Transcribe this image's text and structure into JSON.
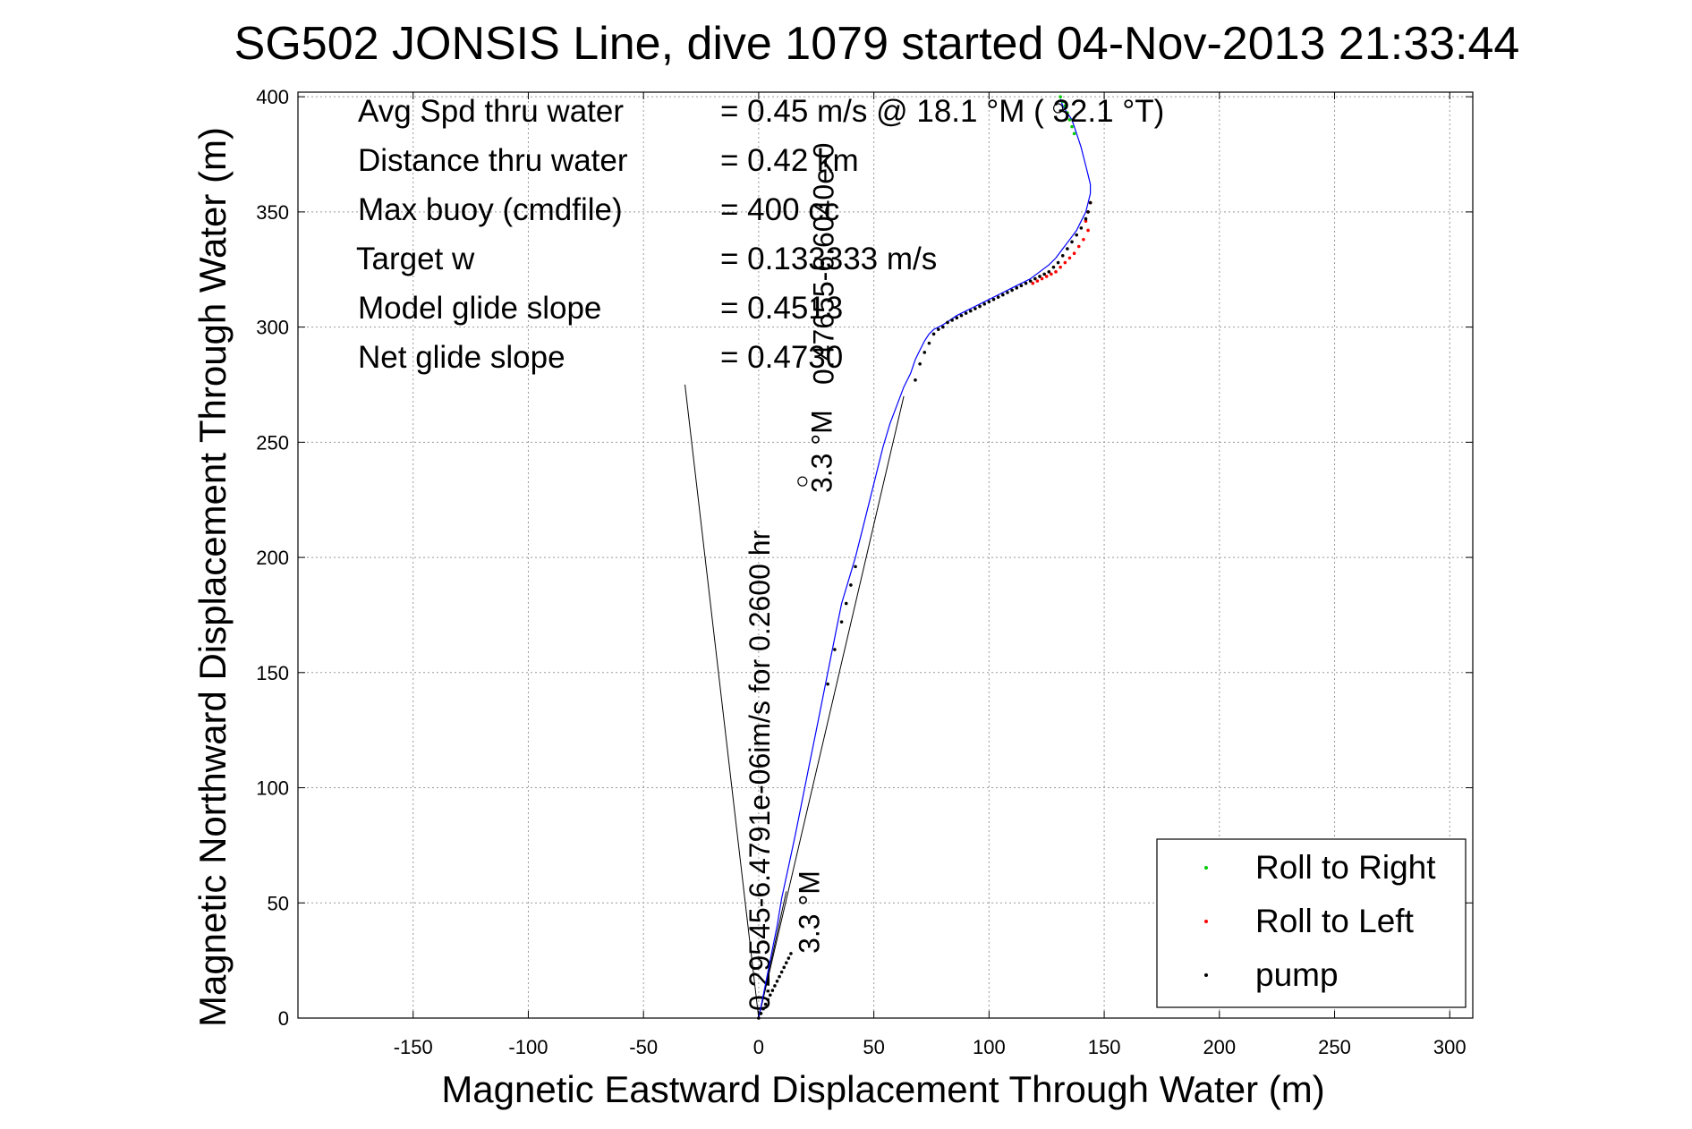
{
  "chart_data": {
    "type": "line",
    "title": "SG502 JONSIS Line, dive 1079 started 04-Nov-2013 21:33:44",
    "xlabel": "Magnetic Eastward Displacement Through Water (m)",
    "ylabel": "Magnetic Northward Displacement Through Water (m)",
    "xlim": [
      -200,
      310
    ],
    "ylim": [
      0,
      402
    ],
    "x_ticks": [
      -150,
      -100,
      -50,
      0,
      50,
      100,
      150,
      200,
      250,
      300
    ],
    "y_ticks": [
      0,
      50,
      100,
      150,
      200,
      250,
      300,
      350,
      400
    ],
    "x_tick_labels": [
      "-150",
      "-100",
      "-50",
      "0",
      "50",
      "100",
      "150",
      "200",
      "250",
      "300"
    ],
    "y_tick_labels": [
      "0",
      "50",
      "100",
      "150",
      "200",
      "250",
      "300",
      "350",
      "400"
    ],
    "grid": true,
    "legend_position": "bottom-right",
    "summary": [
      {
        "label": "Avg Spd thru water",
        "value": "=  0.45 m/s @  18.1 °M ( 32.1 °T)"
      },
      {
        "label": "Distance thru water",
        "value": "=  0.42 km"
      },
      {
        "label": "Max buoy (cmdfile)",
        "value": "= 400 cc"
      },
      {
        "label": "Target w",
        "value": "= 0.133333 m/s"
      },
      {
        "label": "Model glide slope",
        "value": "= 0.4513"
      },
      {
        "label": "Net glide slope",
        "value": "= 0.4730"
      }
    ],
    "annotations": [
      {
        "text": "0.29545-6.4791e-06im/s for 0.2600 hr",
        "x": 0,
        "y": 0
      },
      {
        "text": "3.3 °M",
        "x": 10,
        "y": 28
      },
      {
        "text": "3.3 °M",
        "x": 27,
        "y": 228
      },
      {
        "text": "0.47655-6.6040e-0",
        "x": 20,
        "y": 275
      }
    ],
    "cone_lines": [
      {
        "x": [
          0,
          -32
        ],
        "y": [
          0,
          275
        ]
      },
      {
        "x": [
          0,
          63
        ],
        "y": [
          0,
          270
        ]
      },
      {
        "x": [
          0,
          12
        ],
        "y": [
          0,
          55
        ]
      }
    ],
    "track": {
      "x": [
        0,
        2,
        4,
        6,
        8,
        10,
        13,
        16,
        19,
        22,
        25,
        28,
        31,
        34,
        36,
        39,
        42,
        45,
        48,
        51,
        54,
        57,
        60,
        63,
        66,
        68,
        70,
        72,
        74,
        76,
        78,
        80,
        83,
        86,
        90,
        94,
        98,
        102,
        106,
        110,
        114,
        118,
        122,
        126,
        129,
        132,
        135,
        138,
        140,
        142,
        143,
        144,
        144,
        143,
        142,
        141,
        140,
        139,
        138,
        137,
        136,
        134,
        132,
        131
      ],
      "y": [
        0,
        10,
        20,
        30,
        40,
        52,
        66,
        80,
        95,
        110,
        125,
        140,
        155,
        170,
        180,
        190,
        200,
        212,
        224,
        236,
        248,
        258,
        266,
        274,
        280,
        286,
        290,
        294,
        297,
        299,
        300,
        301,
        303,
        305,
        307,
        309,
        311,
        313,
        315,
        317,
        319,
        321,
        324,
        327,
        330,
        334,
        338,
        342,
        346,
        350,
        354,
        358,
        362,
        366,
        370,
        374,
        378,
        381,
        384,
        387,
        390,
        393,
        396,
        399
      ]
    },
    "series": [
      {
        "name": "Roll to Right",
        "color": "#00cc00",
        "x": [
          131,
          132,
          133,
          134,
          135,
          136,
          137
        ],
        "y": [
          400,
          398,
          396,
          393,
          390,
          387,
          384
        ]
      },
      {
        "name": "Roll to Left",
        "color": "#ff0000",
        "x": [
          142,
          143,
          144,
          143,
          141,
          139,
          137,
          135,
          133,
          131,
          129,
          127,
          125,
          123,
          121,
          119
        ],
        "y": [
          346,
          350,
          354,
          342,
          338,
          335,
          332,
          330,
          328,
          326,
          324,
          323,
          322,
          321,
          320,
          319
        ]
      },
      {
        "name": "pump",
        "color": "#000000",
        "x": [
          0,
          1,
          2,
          3,
          4,
          5,
          6,
          7,
          8,
          9,
          10,
          11,
          12,
          13,
          14,
          30,
          33,
          36,
          38,
          40,
          42,
          68,
          70,
          72,
          74,
          76,
          78,
          80,
          82,
          84,
          86,
          88,
          90,
          92,
          94,
          96,
          98,
          100,
          102,
          104,
          106,
          108,
          110,
          112,
          114,
          116,
          118,
          120,
          122,
          124,
          126,
          128,
          130,
          132,
          134,
          136,
          138,
          140,
          142,
          143,
          144
        ],
        "y": [
          0,
          2,
          4,
          6,
          8,
          10,
          12,
          14,
          16,
          18,
          20,
          22,
          24,
          26,
          28,
          145,
          160,
          172,
          180,
          188,
          196,
          277,
          284,
          289,
          293,
          297,
          299,
          300,
          302,
          303,
          304,
          305,
          306,
          307,
          308,
          309,
          310,
          311,
          312,
          313,
          314,
          315,
          316,
          317,
          318,
          319,
          320,
          321,
          322,
          323,
          324,
          326,
          328,
          331,
          334,
          337,
          340,
          343,
          347,
          350,
          354
        ]
      }
    ],
    "markers": [
      {
        "x": 130,
        "y": 395
      },
      {
        "x": 19,
        "y": 233
      }
    ]
  }
}
